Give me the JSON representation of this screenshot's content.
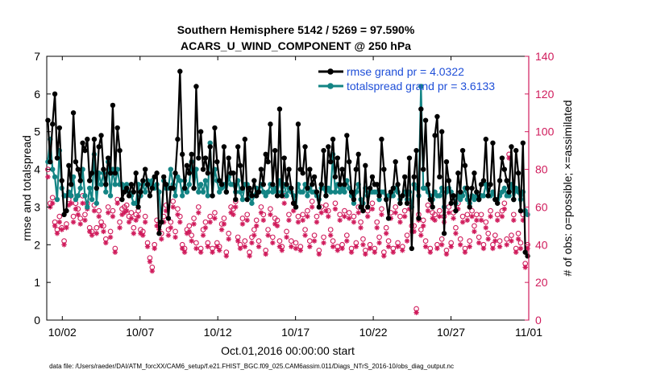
{
  "colors": {
    "rmse": "#000000",
    "totalspread": "#138484",
    "obs": "#d01c5c",
    "legend_text": "#1f4fd8",
    "axis": "#000000"
  },
  "chart_data": {
    "type": "line",
    "title_line1": "Southern Hemisphere 5142 / 5269 = 97.590%",
    "title_line2": "ACARS_U_WIND_COMPONENT @ 250 hPa",
    "xlabel": "Oct.01,2016 00:00:00 start",
    "ylabel_left": "rmse and totalspread",
    "ylabel_right": "# of obs: o=possible; ×=assimilated",
    "xlim": [
      0,
      31
    ],
    "ylim_left": [
      0,
      7
    ],
    "ylim_right": [
      0,
      140
    ],
    "x_ticks": [
      {
        "x": 1,
        "label": "10/02"
      },
      {
        "x": 6,
        "label": "10/07"
      },
      {
        "x": 11,
        "label": "10/12"
      },
      {
        "x": 16,
        "label": "10/17"
      },
      {
        "x": 21,
        "label": "10/22"
      },
      {
        "x": 26,
        "label": "10/27"
      },
      {
        "x": 31,
        "label": "11/01"
      }
    ],
    "y_ticks_left": [
      "0",
      "1",
      "2",
      "3",
      "4",
      "5",
      "6",
      "7"
    ],
    "y_ticks_right": [
      "0",
      "20",
      "40",
      "60",
      "80",
      "100",
      "120",
      "140"
    ],
    "legend": [
      {
        "name": "rmse grand pr = 4.0322"
      },
      {
        "name": "totalspread grand pr = 3.6133"
      }
    ],
    "series": [
      {
        "name": "rmse",
        "axis": "left",
        "values": [
          5.3,
          4.2,
          5.2,
          6.0,
          4.3,
          5.1,
          3.7,
          2.8,
          2.9,
          4.1,
          3.6,
          5.5,
          4.2,
          4.0,
          3.7,
          4.7,
          4.5,
          4.8,
          3.7,
          3.9,
          4.8,
          3.5,
          4.6,
          4.9,
          4.0,
          3.6,
          4.3,
          3.9,
          5.7,
          3.9,
          5.1,
          4.5,
          3.2,
          3.4,
          3.5,
          3.3,
          3.6,
          3.4,
          3.9,
          3.0,
          3.4,
          3.7,
          4.0,
          3.6,
          3.3,
          3.5,
          3.8,
          3.9,
          2.3,
          2.6,
          3.8,
          3.6,
          2.7,
          3.5,
          3.5,
          3.9,
          4.8,
          6.6,
          4.4,
          3.5,
          4.1,
          3.9,
          4.4,
          3.5,
          6.2,
          4.3,
          5.0,
          4.0,
          4.3,
          3.9,
          4.6,
          3.3,
          5.1,
          4.2,
          3.7,
          3.6,
          4.6,
          3.4,
          4.3,
          3.9,
          3.9,
          3.2,
          4.6,
          4.1,
          3.5,
          4.8,
          3.2,
          3.5,
          3.3,
          3.7,
          3.3,
          3.4,
          4.0,
          3.6,
          4.4,
          4.2,
          5.2,
          3.6,
          4.5,
          3.3,
          5.6,
          3.3,
          4.3,
          3.6,
          4.0,
          3.5,
          3.1,
          3.0,
          5.2,
          4.0,
          3.9,
          4.6,
          3.5,
          4.0,
          3.6,
          3.8,
          3.4,
          3.0,
          3.6,
          4.5,
          3.3,
          4.6,
          4.2,
          4.8,
          3.8,
          4.3,
          3.6,
          4.0,
          3.6,
          4.9,
          4.2,
          3.4,
          3.2,
          4.0,
          4.4,
          3.0,
          2.9,
          4.1,
          3.0,
          3.5,
          3.8,
          3.6,
          3.6,
          3.3,
          4.8,
          4.0,
          3.2,
          2.7,
          3.4,
          3.5,
          4.2,
          3.6,
          3.1,
          3.3,
          3.8,
          3.1,
          4.3,
          1.9,
          3.8,
          4.5,
          2.7,
          5.6,
          4.0,
          5.3,
          3.6,
          3.2,
          3.0,
          4.9,
          5.4,
          3.8,
          5.0,
          2.3,
          4.2,
          3.7,
          3.1,
          3.3,
          2.9,
          3.9,
          3.4,
          4.5,
          4.1,
          3.5,
          3.0,
          3.5,
          3.9,
          3.4,
          3.2,
          3.6,
          3.7,
          4.8,
          3.3,
          3.6,
          4.7,
          3.2,
          3.1,
          3.7,
          4.3,
          4.0,
          3.7,
          3.4,
          4.6,
          3.2,
          4.5,
          3.9,
          2.9,
          4.7,
          1.8,
          1.7
        ]
      },
      {
        "name": "totalspread",
        "axis": "left",
        "values": [
          4.2,
          4.8,
          4.0,
          3.8,
          3.2,
          4.5,
          3.5,
          3.3,
          3.3,
          3.4,
          3.3,
          3.8,
          3.2,
          3.3,
          3.5,
          4.0,
          3.3,
          3.0,
          3.5,
          3.2,
          4.4,
          3.1,
          3.9,
          3.6,
          3.9,
          3.4,
          4.2,
          3.3,
          4.0,
          3.6,
          4.0,
          3.6,
          3.6,
          3.5,
          3.6,
          3.4,
          3.3,
          3.1,
          3.1,
          3.6,
          3.3,
          3.6,
          3.4,
          3.7,
          3.6,
          3.7,
          3.5,
          3.6,
          3.4,
          2.6,
          3.7,
          3.5,
          3.5,
          4.0,
          3.6,
          3.3,
          3.8,
          3.7,
          3.3,
          3.7,
          3.4,
          3.6,
          4.2,
          3.5,
          4.0,
          3.4,
          3.6,
          3.4,
          3.7,
          3.3,
          4.7,
          3.3,
          4.0,
          3.7,
          3.4,
          3.5,
          3.6,
          3.4,
          3.8,
          3.6,
          3.6,
          3.4,
          3.7,
          3.4,
          3.2,
          3.6,
          3.6,
          3.3,
          3.1,
          3.3,
          3.5,
          3.4,
          3.6,
          3.4,
          3.3,
          3.4,
          3.6,
          3.4,
          3.5,
          3.4,
          3.7,
          3.4,
          3.6,
          3.3,
          3.5,
          3.4,
          3.3,
          3.0,
          3.6,
          3.4,
          3.4,
          3.6,
          3.3,
          3.5,
          3.4,
          3.4,
          3.3,
          3.2,
          3.5,
          3.5,
          3.3,
          3.5,
          3.4,
          4.4,
          3.4,
          3.6,
          3.4,
          3.5,
          3.4,
          3.7,
          3.5,
          3.3,
          3.1,
          3.4,
          3.6,
          3.2,
          3.1,
          3.5,
          3.3,
          3.4,
          3.4,
          3.4,
          3.4,
          3.2,
          3.4,
          3.4,
          3.2,
          3.3,
          3.3,
          3.3,
          3.5,
          3.4,
          3.2,
          3.3,
          3.4,
          3.2,
          3.4,
          3.0,
          3.6,
          3.5,
          3.3,
          6.2,
          3.5,
          3.5,
          3.4,
          3.3,
          3.2,
          3.4,
          3.3,
          3.3,
          3.5,
          3.0,
          3.4,
          3.5,
          3.4,
          3.3,
          3.1,
          3.3,
          3.2,
          3.3,
          3.5,
          3.2,
          3.1,
          3.3,
          3.2,
          3.3,
          3.2,
          3.3,
          3.3,
          3.6,
          3.3,
          3.3,
          3.4,
          3.2,
          3.2,
          3.3,
          3.4,
          3.5,
          3.3,
          3.3,
          3.6,
          3.2,
          3.5,
          3.4,
          3.2,
          3.4,
          2.9,
          2.8
        ]
      },
      {
        "name": "possible obs",
        "axis": "right",
        "marker": "o",
        "values": [
          80,
          62,
          65,
          52,
          48,
          55,
          49,
          42,
          51,
          64,
          66,
          55,
          62,
          59,
          54,
          66,
          56,
          62,
          49,
          47,
          61,
          49,
          58,
          52,
          50,
          43,
          60,
          47,
          58,
          38,
          64,
          52,
          59,
          60,
          61,
          55,
          57,
          49,
          56,
          58,
          48,
          47,
          55,
          41,
          33,
          28,
          40,
          53,
          51,
          46,
          55,
          61,
          48,
          52,
          63,
          47,
          59,
          55,
          40,
          38,
          48,
          50,
          45,
          54,
          41,
          60,
          38,
          48,
          52,
          41,
          55,
          38,
          57,
          41,
          39,
          51,
          54,
          36,
          46,
          60,
          59,
          63,
          44,
          40,
          54,
          42,
          56,
          36,
          44,
          48,
          53,
          42,
          60,
          56,
          37,
          48,
          59,
          44,
          54,
          53,
          42,
          39,
          66,
          47,
          56,
          42,
          62,
          41,
          55,
          39,
          56,
          48,
          58,
          42,
          63,
          45,
          55,
          37,
          60,
          44,
          61,
          58,
          48,
          42,
          62,
          39,
          56,
          40,
          58,
          45,
          57,
          38,
          55,
          41,
          60,
          52,
          43,
          37,
          58,
          40,
          62,
          38,
          52,
          44,
          59,
          36,
          49,
          42,
          57,
          38,
          60,
          41,
          55,
          39,
          58,
          45,
          62,
          50,
          50,
          6,
          56,
          48,
          53,
          42,
          61,
          38,
          57,
          56,
          40,
          58,
          43,
          55,
          37,
          60,
          41,
          57,
          49,
          62,
          43,
          55,
          38,
          56,
          42,
          58,
          50,
          56,
          44,
          56,
          40,
          52,
          46,
          58,
          40,
          45,
          56,
          42,
          58,
          62,
          43,
          88,
          45,
          56,
          38,
          46,
          41,
          56,
          30,
          40
        ]
      },
      {
        "name": "assimilated obs",
        "axis": "right",
        "marker": "*",
        "values": [
          76,
          60,
          62,
          50,
          46,
          52,
          48,
          40,
          49,
          61,
          62,
          52,
          59,
          56,
          51,
          62,
          53,
          59,
          47,
          45,
          58,
          46,
          55,
          50,
          47,
          41,
          57,
          44,
          55,
          36,
          62,
          49,
          56,
          57,
          58,
          52,
          54,
          46,
          53,
          55,
          46,
          45,
          52,
          39,
          31,
          26,
          38,
          50,
          48,
          43,
          52,
          58,
          45,
          49,
          60,
          44,
          56,
          52,
          38,
          36,
          46,
          47,
          42,
          51,
          38,
          57,
          36,
          45,
          49,
          39,
          52,
          36,
          54,
          39,
          37,
          48,
          51,
          34,
          43,
          57,
          56,
          60,
          42,
          38,
          51,
          39,
          53,
          34,
          41,
          45,
          50,
          39,
          57,
          53,
          35,
          45,
          56,
          41,
          51,
          50,
          39,
          37,
          62,
          44,
          53,
          39,
          58,
          38,
          52,
          37,
          53,
          45,
          55,
          39,
          60,
          42,
          52,
          35,
          57,
          41,
          58,
          55,
          45,
          39,
          59,
          37,
          53,
          38,
          55,
          42,
          54,
          36,
          52,
          39,
          57,
          49,
          40,
          35,
          55,
          38,
          59,
          36,
          49,
          41,
          56,
          34,
          46,
          39,
          54,
          36,
          57,
          39,
          52,
          37,
          55,
          42,
          59,
          47,
          47,
          4,
          53,
          45,
          50,
          39,
          58,
          36,
          54,
          53,
          38,
          55,
          40,
          52,
          35,
          57,
          39,
          54,
          46,
          59,
          40,
          52,
          36,
          53,
          39,
          55,
          47,
          53,
          41,
          53,
          38,
          49,
          43,
          55,
          38,
          42,
          53,
          39,
          55,
          59,
          40,
          86,
          42,
          53,
          36,
          43,
          38,
          53,
          28,
          38
        ]
      }
    ],
    "footnote": "data file: /Users/raeder/DAI/ATM_forcXX/CAM6_setup/f.e21.FHIST_BGC.f09_025.CAM6assim.011/Diags_NTrS_2016-10/obs_diag_output.nc"
  }
}
